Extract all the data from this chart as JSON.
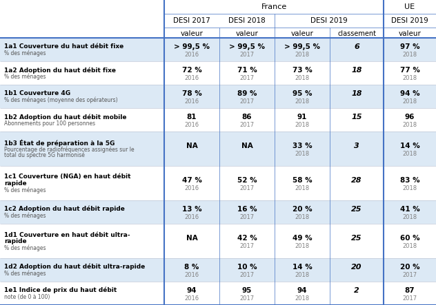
{
  "rows": [
    {
      "label_bold": "1a1 Couverture du haut débit fixe",
      "label_sub": "% des ménages",
      "v2017": "> 99,5 %",
      "y2017": "2016",
      "v2018": "> 99,5 %",
      "y2018": "2017",
      "v2019": "> 99,5 %",
      "y2019": "2018",
      "classement": "6",
      "ue_val": "97 %",
      "ue_year": "2018",
      "shaded": true,
      "tall": false
    },
    {
      "label_bold": "1a2 Adoption du haut débit fixe",
      "label_sub": "% des ménages",
      "v2017": "72 %",
      "y2017": "2016",
      "v2018": "71 %",
      "y2018": "2017",
      "v2019": "73 %",
      "y2019": "2018",
      "classement": "18",
      "ue_val": "77 %",
      "ue_year": "2018",
      "shaded": false,
      "tall": false
    },
    {
      "label_bold": "1b1 Couverture 4G",
      "label_sub": "% des ménages (moyenne des opérateurs)",
      "v2017": "78 %",
      "y2017": "2016",
      "v2018": "89 %",
      "y2018": "2017",
      "v2019": "95 %",
      "y2019": "2018",
      "classement": "18",
      "ue_val": "94 %",
      "ue_year": "2018",
      "shaded": true,
      "tall": false
    },
    {
      "label_bold": "1b2 Adoption du haut débit mobile",
      "label_sub": "Abonnements pour 100 personnes",
      "v2017": "81",
      "y2017": "2016",
      "v2018": "86",
      "y2018": "2017",
      "v2019": "91",
      "y2019": "2018",
      "classement": "15",
      "ue_val": "96",
      "ue_year": "2018",
      "shaded": false,
      "tall": false
    },
    {
      "label_bold": "1b3 État de préparation à la 5G",
      "label_sub": "Pourcentage de radiofréquences assignées sur le\ntotal du spectre 5G harmonisé",
      "v2017": "NA",
      "y2017": "",
      "v2018": "NA",
      "y2018": "",
      "v2019": "33 %",
      "y2019": "2018",
      "classement": "3",
      "ue_val": "14 %",
      "ue_year": "2018",
      "shaded": true,
      "tall": true
    },
    {
      "label_bold": "1c1 Couverture (NGA) en haut débit\nrapide",
      "label_sub": "% des ménages",
      "v2017": "47 %",
      "y2017": "2016",
      "v2018": "52 %",
      "y2018": "2017",
      "v2019": "58 %",
      "y2019": "2018",
      "classement": "28",
      "ue_val": "83 %",
      "ue_year": "2018",
      "shaded": false,
      "tall": true
    },
    {
      "label_bold": "1c2 Adoption du haut débit rapide",
      "label_sub": "% des ménages",
      "v2017": "13 %",
      "y2017": "2016",
      "v2018": "16 %",
      "y2018": "2017",
      "v2019": "20 %",
      "y2019": "2018",
      "classement": "25",
      "ue_val": "41 %",
      "ue_year": "2018",
      "shaded": true,
      "tall": false
    },
    {
      "label_bold": "1d1 Couverture en haut débit ultra-\nrapide",
      "label_sub": "% des ménages",
      "v2017": "NA",
      "y2017": "",
      "v2018": "42 %",
      "y2018": "2017",
      "v2019": "49 %",
      "y2019": "2018",
      "classement": "25",
      "ue_val": "60 %",
      "ue_year": "2018",
      "shaded": false,
      "tall": true
    },
    {
      "label_bold": "1d2 Adoption du haut débit ultra-rapide",
      "label_sub": "% des ménages",
      "v2017": "8 %",
      "y2017": "2016",
      "v2018": "10 %",
      "y2018": "2017",
      "v2019": "14 %",
      "y2019": "2018",
      "classement": "20",
      "ue_val": "20 %",
      "ue_year": "2017",
      "shaded": true,
      "tall": false
    },
    {
      "label_bold": "1e1 Indice de prix du haut débit",
      "label_sub": "note (de 0 à 100)",
      "v2017": "94",
      "y2017": "2016",
      "v2018": "95",
      "y2018": "2017",
      "v2019": "94",
      "y2019": "2018",
      "classement": "2",
      "ue_val": "87",
      "ue_year": "2017",
      "shaded": false,
      "tall": false
    }
  ],
  "color_shaded": "#dce9f5",
  "color_white": "#ffffff",
  "color_border_main": "#4472c4",
  "color_border_light": "#c0c8d8",
  "color_year": "#808080",
  "figw": 6.32,
  "figh": 4.43,
  "dpi": 100
}
